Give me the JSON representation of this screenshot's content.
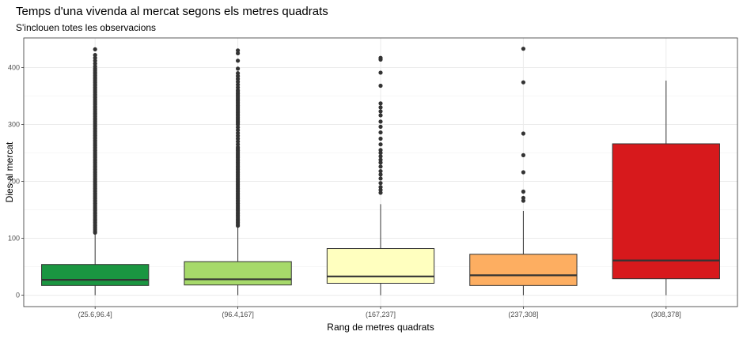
{
  "chart_data": {
    "type": "boxplot",
    "title": "Temps d'una vivenda al mercat segons els metres quadrats",
    "subtitle": "S'inclouen totes les observacions",
    "xlabel": "Rang de metres quadrats",
    "ylabel": "Dies al mercat",
    "ylim": [
      -20,
      452
    ],
    "y_ticks": [
      0,
      100,
      200,
      300,
      400
    ],
    "grid": true,
    "categories": [
      "(25.6,96.4]",
      "(96.4,167]",
      "(167,237]",
      "(237,308]",
      "(308,378]"
    ],
    "boxes": [
      {
        "category": "(25.6,96.4]",
        "color": "#1a9641",
        "min": 0,
        "q1": 17,
        "median": 27,
        "q3": 54,
        "max": 108,
        "outliers": [
          110,
          113,
          116,
          119,
          122,
          125,
          128,
          131,
          134,
          137,
          140,
          143,
          146,
          149,
          152,
          155,
          158,
          161,
          164,
          167,
          170,
          173,
          176,
          179,
          182,
          185,
          188,
          191,
          194,
          197,
          200,
          203,
          206,
          209,
          212,
          215,
          218,
          221,
          224,
          227,
          230,
          233,
          236,
          239,
          242,
          245,
          248,
          251,
          254,
          257,
          260,
          263,
          266,
          269,
          272,
          275,
          278,
          281,
          284,
          287,
          290,
          293,
          296,
          299,
          302,
          305,
          308,
          311,
          314,
          317,
          320,
          323,
          326,
          329,
          332,
          335,
          338,
          341,
          344,
          347,
          350,
          353,
          356,
          359,
          362,
          365,
          368,
          371,
          374,
          377,
          380,
          383,
          386,
          389,
          392,
          395,
          398,
          402,
          407,
          412,
          417,
          422,
          432
        ]
      },
      {
        "category": "(96.4,167]",
        "color": "#a6d96a",
        "min": 0,
        "q1": 18,
        "median": 28,
        "q3": 59,
        "max": 120,
        "outliers": [
          122,
          125,
          128,
          131,
          134,
          137,
          140,
          143,
          146,
          149,
          152,
          155,
          158,
          161,
          164,
          167,
          170,
          173,
          176,
          179,
          182,
          185,
          188,
          191,
          194,
          197,
          200,
          203,
          206,
          209,
          212,
          215,
          218,
          221,
          224,
          227,
          230,
          233,
          236,
          239,
          242,
          245,
          248,
          251,
          254,
          257,
          260,
          265,
          270,
          275,
          280,
          285,
          290,
          295,
          300,
          303,
          306,
          309,
          312,
          315,
          318,
          321,
          324,
          327,
          330,
          333,
          336,
          339,
          342,
          345,
          348,
          351,
          354,
          357,
          360,
          365,
          370,
          375,
          380,
          385,
          390,
          398,
          412,
          425,
          430
        ]
      },
      {
        "category": "(167,237]",
        "color": "#ffffbf",
        "min": 0,
        "q1": 21,
        "median": 33,
        "q3": 82,
        "max": 160,
        "outliers": [
          180,
          185,
          190,
          197,
          205,
          212,
          218,
          226,
          233,
          238,
          244,
          250,
          255,
          265,
          275,
          286,
          296,
          305,
          316,
          323,
          330,
          337,
          368,
          391,
          414,
          417
        ]
      },
      {
        "category": "(237,308]",
        "color": "#fdae61",
        "min": 0,
        "q1": 17,
        "median": 35,
        "q3": 72,
        "max": 148,
        "outliers": [
          166,
          171,
          182,
          216,
          246,
          284,
          374,
          433
        ]
      },
      {
        "category": "(308,378]",
        "color": "#d7191c",
        "min": 0,
        "q1": 29,
        "median": 61,
        "q3": 266,
        "max": 377,
        "outliers": []
      }
    ]
  }
}
